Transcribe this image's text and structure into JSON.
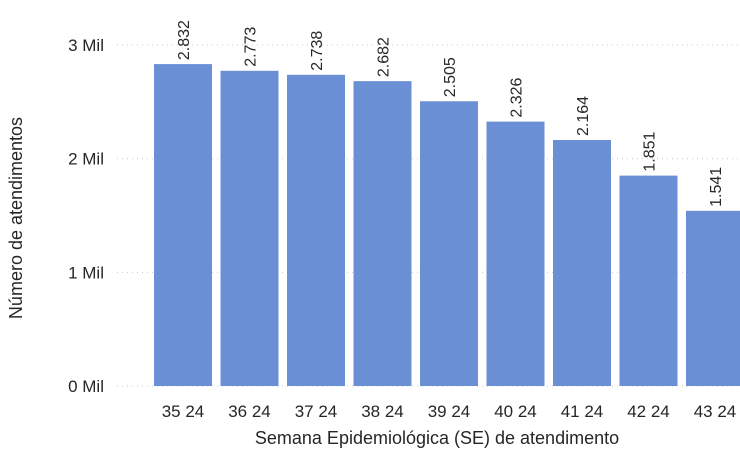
{
  "chart_data": {
    "type": "bar",
    "xlabel": "Semana Epidemiológica (SE) de atendimento",
    "ylabel": "Número de atendimentos",
    "categories": [
      "35 24",
      "36 24",
      "37 24",
      "38 24",
      "39 24",
      "40 24",
      "41 24",
      "42 24",
      "43 24"
    ],
    "values": [
      2832,
      2773,
      2738,
      2682,
      2505,
      2326,
      2164,
      1851,
      1541
    ],
    "data_labels": [
      "2.832",
      "2.773",
      "2.738",
      "2.682",
      "2.505",
      "2.326",
      "2.164",
      "1.851",
      "1.541"
    ],
    "yticks": [
      {
        "value": 0,
        "label": "0 Mil"
      },
      {
        "value": 1000,
        "label": "1 Mil"
      },
      {
        "value": 2000,
        "label": "2 Mil"
      },
      {
        "value": 3000,
        "label": "3 Mil"
      }
    ],
    "ylim": [
      0,
      3000
    ],
    "grid": true,
    "bar_color": "#6a8fd4"
  }
}
